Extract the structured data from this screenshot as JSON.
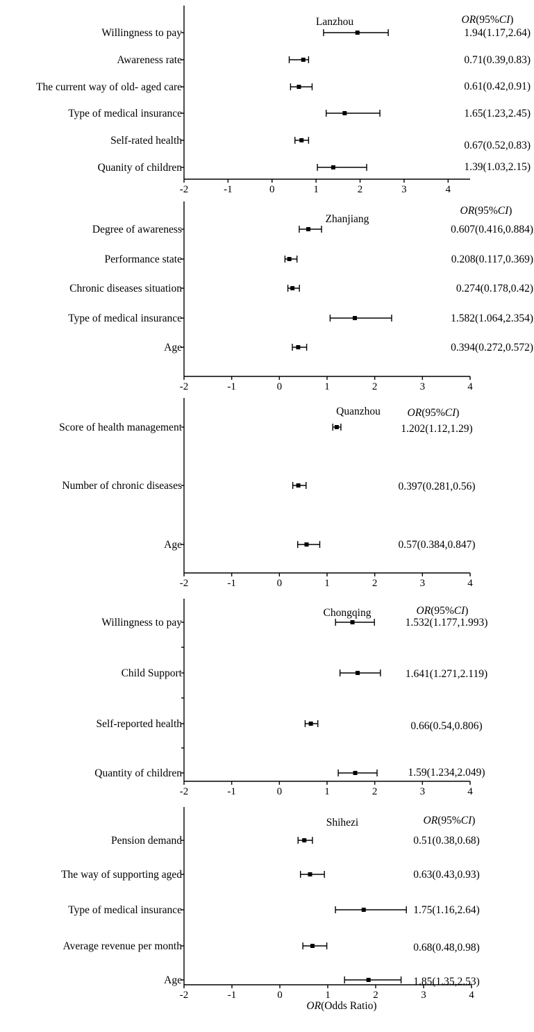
{
  "chart_data": [
    {
      "type": "forest",
      "title": "Lanzhou",
      "column_header": {
        "or": "OR",
        "ci": "(95%CI)",
        "ci_italic": "CI",
        "ci_open": "(95%",
        "ci_close": ")"
      },
      "xlim": [
        -2,
        4.5
      ],
      "xticks": [
        "-2",
        "-1",
        "0",
        "1",
        "2",
        "3",
        "4"
      ],
      "xtick_values": [
        -2,
        -1,
        0,
        1,
        2,
        3,
        4
      ],
      "rows": [
        {
          "label": "Willingness to pay",
          "or": 1.94,
          "lo": 1.17,
          "hi": 2.64,
          "text": "1.94(1.17,2.64)"
        },
        {
          "label": "Awareness rate",
          "or": 0.71,
          "lo": 0.39,
          "hi": 0.83,
          "text": "0.71(0.39,0.83)"
        },
        {
          "label": "The current way of old- aged care",
          "or": 0.61,
          "lo": 0.42,
          "hi": 0.91,
          "text": "0.61(0.42,0.91)"
        },
        {
          "label": "Type of medical insurance",
          "or": 1.65,
          "lo": 1.23,
          "hi": 2.45,
          "text": "1.65(1.23,2.45)"
        },
        {
          "label": "Self-rated health",
          "or": 0.67,
          "lo": 0.52,
          "hi": 0.83,
          "text": "0.67(0.52,0.83)"
        },
        {
          "label": "Quanity of children",
          "or": 1.39,
          "lo": 1.03,
          "hi": 2.15,
          "text": "1.39(1.03,2.15)"
        }
      ]
    },
    {
      "type": "forest",
      "title": "Zhanjiang",
      "column_header": {
        "or": "OR",
        "ci_italic": "CI",
        "ci_open": "(95%",
        "ci_close": ")"
      },
      "xlim": [
        -2,
        4
      ],
      "xticks": [
        "-2",
        "-1",
        "0",
        "1",
        "2",
        "3",
        "4"
      ],
      "xtick_values": [
        -2,
        -1,
        0,
        1,
        2,
        3,
        4
      ],
      "rows": [
        {
          "label": "Degree of awareness",
          "or": 0.607,
          "lo": 0.416,
          "hi": 0.884,
          "text": "0.607(0.416,0.884)"
        },
        {
          "label": "Performance state",
          "or": 0.208,
          "lo": 0.117,
          "hi": 0.369,
          "text": "0.208(0.117,0.369)"
        },
        {
          "label": "Chronic diseases situation",
          "or": 0.274,
          "lo": 0.178,
          "hi": 0.42,
          "text": "0.274(0.178,0.42)"
        },
        {
          "label": "Type of medical insurance",
          "or": 1.582,
          "lo": 1.064,
          "hi": 2.354,
          "text": "1.582(1.064,2.354)"
        },
        {
          "label": "Age",
          "or": 0.394,
          "lo": 0.272,
          "hi": 0.572,
          "text": "0.394(0.272,0.572)"
        }
      ]
    },
    {
      "type": "forest",
      "title": "Quanzhou",
      "column_header": {
        "or": "OR",
        "ci_italic": "CI",
        "ci_open": "(95%",
        "ci_close": ")"
      },
      "xlim": [
        -2,
        4
      ],
      "xticks": [
        "-2",
        "-1",
        "0",
        "1",
        "2",
        "3",
        "4"
      ],
      "xtick_values": [
        -2,
        -1,
        0,
        1,
        2,
        3,
        4
      ],
      "rows": [
        {
          "label": "Score of health management",
          "or": 1.202,
          "lo": 1.12,
          "hi": 1.29,
          "text": "1.202(1.12,1.29)"
        },
        {
          "label": "Number of chronic diseases",
          "or": 0.397,
          "lo": 0.281,
          "hi": 0.56,
          "text": "0.397(0.281,0.56)"
        },
        {
          "label": "Age",
          "or": 0.57,
          "lo": 0.384,
          "hi": 0.847,
          "text": "0.57(0.384,0.847)"
        }
      ]
    },
    {
      "type": "forest",
      "title": "Chongqing",
      "column_header": {
        "or": "OR",
        "ci_italic": "CI",
        "ci_open": "(95%",
        "ci_close": ")"
      },
      "xlim": [
        -2,
        4
      ],
      "xticks": [
        "-2",
        "-1",
        "0",
        "1",
        "2",
        "3",
        "4"
      ],
      "xtick_values": [
        -2,
        -1,
        0,
        1,
        2,
        3,
        4
      ],
      "rows": [
        {
          "label": "Willingness to pay",
          "or": 1.532,
          "lo": 1.177,
          "hi": 1.993,
          "text": "1.532(1.177,1.993)"
        },
        {
          "label": "Child Support",
          "or": 1.641,
          "lo": 1.271,
          "hi": 2.119,
          "text": "1.641(1.271,2.119)"
        },
        {
          "label": "Self-reported health",
          "or": 0.66,
          "lo": 0.54,
          "hi": 0.806,
          "text": "0.66(0.54,0.806)"
        },
        {
          "label": "Quantity of children",
          "or": 1.59,
          "lo": 1.234,
          "hi": 2.049,
          "text": "1.59(1.234,2.049)"
        }
      ]
    },
    {
      "type": "forest",
      "title": "Shihezi",
      "column_header": {
        "or": "OR",
        "ci_italic": "CI",
        "ci_open": "(95%",
        "ci_close": ")"
      },
      "xlim": [
        -2,
        4
      ],
      "xticks": [
        "-2",
        "-1",
        "0",
        "1",
        "2",
        "3",
        "4"
      ],
      "xtick_values": [
        -2,
        -1,
        0,
        1,
        2,
        3,
        4
      ],
      "xlabel_italic": "OR",
      "xlabel_rest": "(Odds Ratio)",
      "rows": [
        {
          "label": "Pension demand",
          "or": 0.51,
          "lo": 0.38,
          "hi": 0.68,
          "text": "0.51(0.38,0.68)"
        },
        {
          "label": "The way of supporting aged",
          "or": 0.63,
          "lo": 0.43,
          "hi": 0.93,
          "text": "0.63(0.43,0.93)"
        },
        {
          "label": "Type of medical insurance",
          "or": 1.75,
          "lo": 1.16,
          "hi": 2.64,
          "text": "1.75(1.16,2.64)"
        },
        {
          "label": "Average revenue per month",
          "or": 0.68,
          "lo": 0.48,
          "hi": 0.98,
          "text": "0.68(0.48,0.98)"
        },
        {
          "label": "Age",
          "or": 1.85,
          "lo": 1.35,
          "hi": 2.53,
          "text": "1.85(1.35,2.53)"
        }
      ]
    }
  ]
}
